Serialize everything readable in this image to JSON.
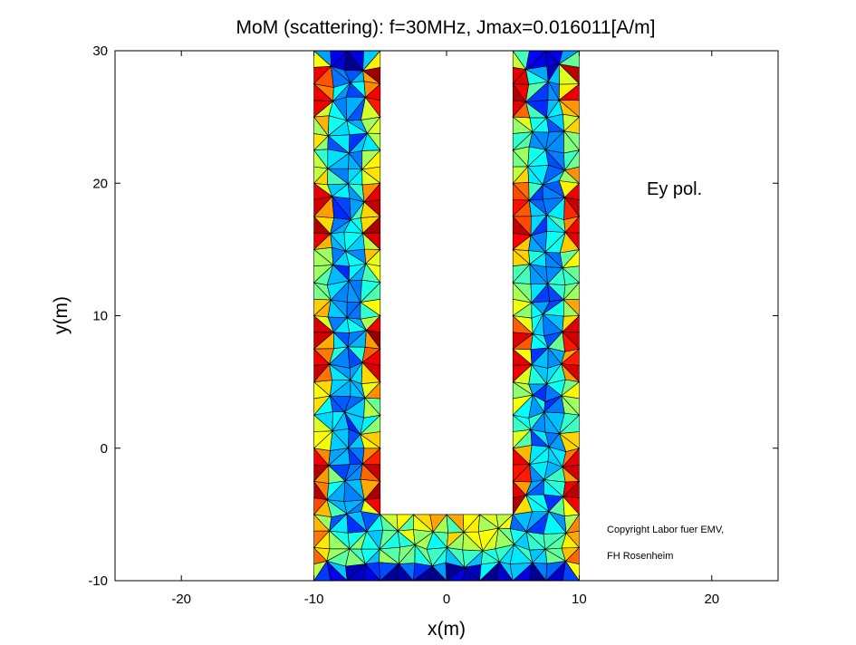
{
  "chart_data": {
    "type": "heatmap",
    "title": "MoM (scattering): f=30MHz, Jmax=0.016011[A/m]",
    "xlabel": "x(m)",
    "ylabel": "y(m)",
    "xlim": [
      -25,
      25
    ],
    "ylim": [
      -10,
      30
    ],
    "xticks": [
      -20,
      -10,
      0,
      10,
      20
    ],
    "yticks": [
      -10,
      0,
      10,
      20,
      30
    ],
    "grid": false,
    "colormap": "jet",
    "colormap_stops": [
      "#00008f",
      "#0000ff",
      "#00ffff",
      "#ffff00",
      "#ff0000",
      "#800000"
    ],
    "jmax": 0.016011,
    "unit": "A/m",
    "geometry": {
      "shape": "U-shaped conducting plate",
      "outer_x": [
        -10,
        10
      ],
      "outer_y": [
        -10,
        30
      ],
      "slot_x": [
        -5,
        5
      ],
      "slot_y": [
        -5,
        30
      ]
    },
    "triangle_edge_color": "#000000",
    "annotations": [
      {
        "text": "Ey pol."
      },
      {
        "text": "Copyright Labor fuer EMV,"
      },
      {
        "text": "FH Rosenheim"
      }
    ]
  }
}
